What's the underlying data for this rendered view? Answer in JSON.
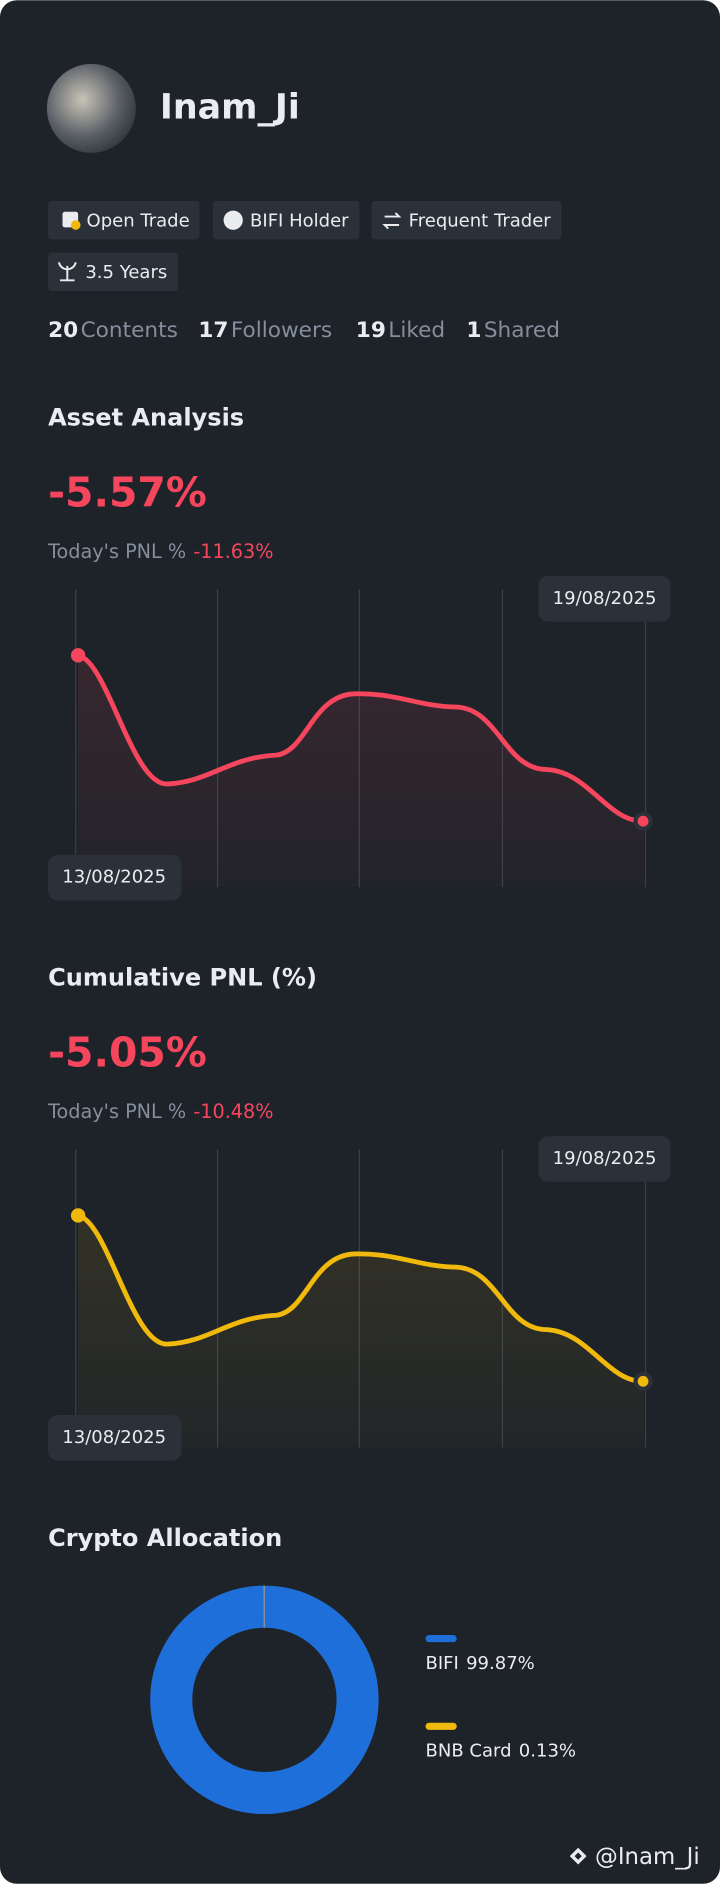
{
  "profile": {
    "name": "Inam_Ji",
    "badges": [
      "Open Trade",
      "BIFI Holder",
      "Frequent Trader",
      "3.5 Years"
    ],
    "stats": [
      {
        "value": "20",
        "label": "Contents"
      },
      {
        "value": "17",
        "label": "Followers"
      },
      {
        "value": "19",
        "label": "Liked"
      },
      {
        "value": "1",
        "label": "Shared"
      }
    ]
  },
  "asset_analysis": {
    "title": "Asset Analysis",
    "value": "-5.57%",
    "pnl_label": "Today's PNL %",
    "pnl_value": "-11.63%",
    "start_date": "13/08/2025",
    "end_date": "19/08/2025"
  },
  "cumulative_pnl": {
    "title": "Cumulative PNL (%)",
    "value": "-5.05%",
    "pnl_label": "Today's PNL %",
    "pnl_value": "-10.48%",
    "start_date": "13/08/2025",
    "end_date": "19/08/2025"
  },
  "chart_data": {
    "type": "donut",
    "title": "Crypto Allocation",
    "categories": [
      "BIFI",
      "BNB Card"
    ],
    "values": [
      99.87,
      0.13
    ],
    "value_labels": [
      "99.87%",
      "0.13%"
    ],
    "colors": [
      "#1e6fd9",
      "#f0b90b"
    ]
  },
  "footer": "@Inam_Ji"
}
